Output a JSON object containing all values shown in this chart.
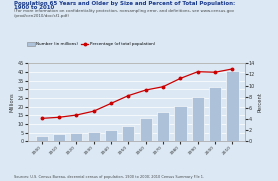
{
  "title_line1": "Population 65 Years and Older by Size and Percent of Total Population:",
  "title_line2": "1900 to 2010",
  "subtitle": "(For more information on confidentiality protection, nonsampling error, and definitions, see www.census.gov\n/prod/cen2010/doc/sf1.pdf)",
  "source": "Sources: U.S. Census Bureau, decennial census of population, 1900 to 2000; 2010 Census Summary File 1.",
  "legend_bar": "Number (in millions)",
  "legend_line": "Percentage (of total population)",
  "bar_years": [
    1900,
    1910,
    1920,
    1930,
    1940,
    1950,
    1960,
    1970,
    1980,
    1990,
    2000,
    2010
  ],
  "bar_vals": [
    3.1,
    3.9,
    4.9,
    5.4,
    6.7,
    9.0,
    13.2,
    16.6,
    20.1,
    25.5,
    31.2,
    40.3
  ],
  "pct_values": [
    4.1,
    4.3,
    4.7,
    5.4,
    6.8,
    8.2,
    9.2,
    9.8,
    11.3,
    12.5,
    12.4,
    13.0
  ],
  "bar_color": "#adc1d8",
  "line_color": "#cc0000",
  "ylim_left": [
    0,
    45
  ],
  "ylim_right": [
    0,
    14
  ],
  "yticks_left": [
    0,
    5,
    10,
    15,
    20,
    25,
    30,
    35,
    40,
    45
  ],
  "yticks_right": [
    0,
    2,
    4,
    6,
    8,
    10,
    12,
    14
  ],
  "ylabel_left": "Millions",
  "ylabel_right": "Percent",
  "bg_color": "#dce9f5",
  "plot_bg": "#dce9f5",
  "title_color": "#1a3a8c",
  "subtitle_color": "#444444",
  "source_color": "#444444",
  "tick_color": "#333333"
}
